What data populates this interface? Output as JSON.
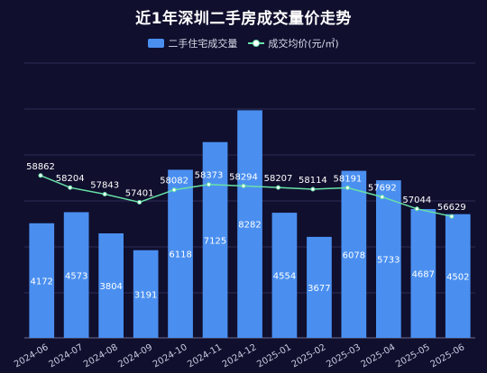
{
  "chart_data": {
    "type": "bar",
    "title": "近1年深圳二手房成交量价走势",
    "categories": [
      "2024-06",
      "2024-07",
      "2024-08",
      "2024-09",
      "2024-10",
      "2024-11",
      "2024-12",
      "2025-01",
      "2025-02",
      "2025-03",
      "2025-04",
      "2025-05",
      "2025-06"
    ],
    "series": [
      {
        "name": "二手住宅成交量",
        "type": "bar",
        "values": [
          4172,
          4573,
          3804,
          3191,
          6118,
          7125,
          8282,
          4554,
          3677,
          6078,
          5733,
          4687,
          4502
        ],
        "color": "#4a8ff0"
      },
      {
        "name": "成交均价(元/㎡)",
        "type": "line",
        "values": [
          58862,
          58204,
          57843,
          57401,
          58082,
          58373,
          58294,
          58207,
          58114,
          58191,
          57692,
          57044,
          56629
        ],
        "color": "#68e2a6"
      }
    ],
    "grid": true,
    "legend_position": "top-center",
    "background": "#100f2e"
  }
}
